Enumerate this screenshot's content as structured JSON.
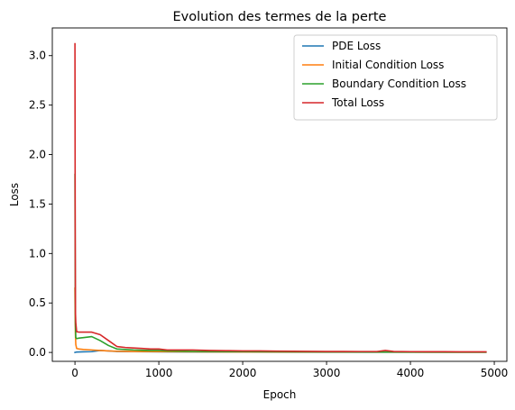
{
  "chart_data": {
    "type": "line",
    "title": "Evolution des termes de la perte",
    "xlabel": "Epoch",
    "ylabel": "Loss",
    "xlim": [
      -270,
      5150
    ],
    "ylim": [
      -0.09,
      3.28
    ],
    "xticks": [
      0,
      1000,
      2000,
      3000,
      4000,
      5000
    ],
    "yticks": [
      0.0,
      0.5,
      1.0,
      1.5,
      2.0,
      2.5,
      3.0
    ],
    "xtick_labels": [
      "0",
      "1000",
      "2000",
      "3000",
      "4000",
      "5000"
    ],
    "ytick_labels": [
      "0.0",
      "0.5",
      "1.0",
      "1.5",
      "2.0",
      "2.5",
      "3.0"
    ],
    "grid": false,
    "legend_position": "top-right",
    "series": [
      {
        "name": "PDE Loss",
        "color": "#1f77b4",
        "x": [
          0,
          10,
          20,
          100,
          200,
          300,
          400,
          500,
          700,
          1000,
          1500,
          2000,
          3000,
          4000,
          4900
        ],
        "y": [
          0.0,
          0.002,
          0.004,
          0.006,
          0.008,
          0.02,
          0.015,
          0.01,
          0.008,
          0.006,
          0.005,
          0.004,
          0.003,
          0.003,
          0.003
        ]
      },
      {
        "name": "Initial Condition Loss",
        "color": "#ff7f0e",
        "x": [
          0,
          5,
          10,
          20,
          50,
          100,
          200,
          300,
          400,
          500,
          700,
          1000,
          1500,
          2000,
          3000,
          4000,
          4900
        ],
        "y": [
          0.65,
          0.2,
          0.08,
          0.04,
          0.035,
          0.03,
          0.025,
          0.02,
          0.015,
          0.012,
          0.01,
          0.008,
          0.006,
          0.005,
          0.004,
          0.003,
          0.003
        ]
      },
      {
        "name": "Boundary Condition Loss",
        "color": "#2ca02c",
        "x": [
          0,
          5,
          10,
          20,
          50,
          100,
          200,
          300,
          400,
          500,
          600,
          700,
          800,
          900,
          1000,
          1100,
          1300,
          1500,
          2000,
          2500,
          3000,
          3500,
          4000,
          4500,
          4900
        ],
        "y": [
          1.8,
          0.3,
          0.15,
          0.14,
          0.145,
          0.15,
          0.16,
          0.12,
          0.07,
          0.035,
          0.03,
          0.025,
          0.022,
          0.02,
          0.02,
          0.015,
          0.012,
          0.01,
          0.008,
          0.006,
          0.005,
          0.004,
          0.004,
          0.003,
          0.003
        ]
      },
      {
        "name": "Total Loss",
        "color": "#d62728",
        "x": [
          0,
          3,
          6,
          10,
          20,
          50,
          100,
          200,
          300,
          400,
          500,
          600,
          700,
          800,
          900,
          1000,
          1100,
          1200,
          1400,
          1600,
          1800,
          2000,
          2200,
          2400,
          2600,
          2800,
          3000,
          3200,
          3400,
          3600,
          3700,
          3800,
          4000,
          4200,
          4400,
          4600,
          4900
        ],
        "y": [
          3.12,
          1.2,
          0.4,
          0.3,
          0.21,
          0.205,
          0.205,
          0.205,
          0.18,
          0.12,
          0.06,
          0.05,
          0.045,
          0.04,
          0.035,
          0.035,
          0.025,
          0.025,
          0.025,
          0.02,
          0.018,
          0.015,
          0.015,
          0.013,
          0.012,
          0.011,
          0.01,
          0.01,
          0.009,
          0.009,
          0.02,
          0.01,
          0.008,
          0.007,
          0.007,
          0.006,
          0.006
        ]
      }
    ]
  }
}
